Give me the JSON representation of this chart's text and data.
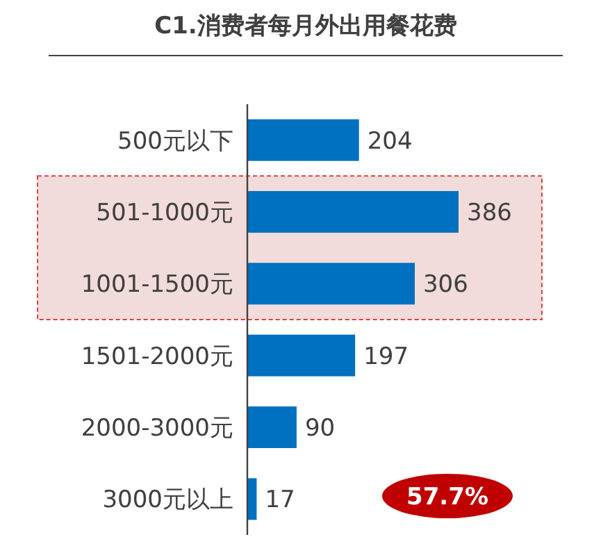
{
  "chart_data": {
    "type": "bar",
    "orientation": "horizontal",
    "title": "C1.消费者每月外出用餐花费",
    "categories": [
      "500元以下",
      "501-1000元",
      "1001-1500元",
      "1501-2000元",
      "2000-3000元",
      "3000元以上"
    ],
    "values": [
      204,
      386,
      306,
      197,
      90,
      17
    ],
    "color": "#0070c0",
    "data_labels": true,
    "bands": [
      {
        "axis": "y",
        "from": "501-1000元",
        "to": "1001-1500元",
        "color": "#f2dcdb"
      }
    ],
    "annotations": [
      "57.7%"
    ]
  }
}
